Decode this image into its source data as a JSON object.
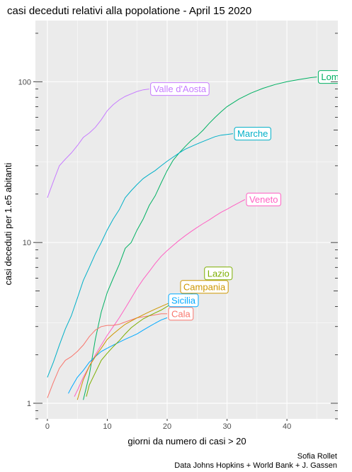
{
  "chart_data": {
    "type": "line",
    "title": "casi deceduti relativi alla popolatione - April 15 2020",
    "xlabel": "giorni da numero di casi >  20",
    "ylabel": "casi deceduti  per 1.e5 abitanti",
    "caption": [
      "Sofia Rollet",
      "Data Johns Hopkins + World Bank + J. Gassen"
    ],
    "xlim": [
      -2,
      48.5
    ],
    "ylim": [
      0.8,
      240
    ],
    "yscale": "log10",
    "grid": true,
    "x_ticks": [
      0,
      10,
      20,
      30,
      40
    ],
    "y_ticks": [
      1,
      10,
      100
    ],
    "series": [
      {
        "name": "Lombardia",
        "label": "Lombardia",
        "color": "#00b163",
        "x": [
          6,
          7,
          8,
          9,
          10,
          11,
          12,
          13,
          14,
          15,
          16,
          17,
          18,
          19,
          20,
          21,
          22,
          23,
          24,
          25,
          26,
          27,
          28,
          29,
          30,
          32,
          34,
          36,
          38,
          40,
          42,
          44,
          45
        ],
        "y": [
          1.05,
          1.5,
          2.5,
          3.7,
          4.9,
          6.0,
          7.3,
          9.2,
          10.0,
          12.0,
          14.0,
          17.0,
          19.5,
          23.5,
          28.0,
          32.5,
          36.0,
          39.5,
          43.0,
          46.0,
          50.0,
          55.0,
          60.0,
          65.0,
          70.0,
          78.0,
          85.0,
          91.0,
          96.0,
          100.0,
          103.0,
          106.0,
          107.0
        ]
      },
      {
        "name": "Marche",
        "label": "Marche",
        "color": "#00b0c8",
        "x": [
          0,
          1,
          2,
          3,
          4,
          5,
          6,
          7,
          8,
          9,
          10,
          11,
          12,
          13,
          14,
          15,
          16,
          17,
          18,
          19,
          20,
          21,
          22,
          23,
          24,
          25,
          26,
          27,
          28,
          29,
          30,
          31
        ],
        "y": [
          1.45,
          1.8,
          2.3,
          2.9,
          3.5,
          4.5,
          5.8,
          7.0,
          8.5,
          10.0,
          12.0,
          14.0,
          16.0,
          19.0,
          21.0,
          23.0,
          25.0,
          26.5,
          28.0,
          30.0,
          32.0,
          34.0,
          36.0,
          38.0,
          39.5,
          41.0,
          42.5,
          44.0,
          45.5,
          46.5,
          47.0,
          47.5
        ]
      },
      {
        "name": "Valle d'Aosta",
        "label": "Valle d'Aosta",
        "color": "#c77cff",
        "x": [
          0,
          1,
          2,
          3,
          4,
          5,
          6,
          7,
          8,
          9,
          10,
          11,
          12,
          13,
          14,
          15,
          16,
          17
        ],
        "y": [
          19.0,
          24.0,
          30.0,
          33.0,
          36.0,
          40.0,
          45.0,
          48.0,
          52.0,
          58.0,
          66.0,
          72.0,
          77.0,
          81.0,
          84.0,
          87.0,
          89.0,
          90.0
        ]
      },
      {
        "name": "Veneto",
        "label": "Veneto",
        "color": "#ff61c3",
        "x": [
          4.5,
          5,
          6,
          7,
          8,
          9,
          10,
          11,
          12,
          13,
          14,
          15,
          16,
          17,
          18,
          19,
          20,
          21,
          22,
          23,
          24,
          25,
          26,
          27,
          28,
          29,
          30,
          31,
          32,
          33
        ],
        "y": [
          1.1,
          1.2,
          1.45,
          1.7,
          2.0,
          2.3,
          2.65,
          3.0,
          3.4,
          3.9,
          4.5,
          5.2,
          5.9,
          6.6,
          7.4,
          8.2,
          8.9,
          9.6,
          10.3,
          11.0,
          11.7,
          12.4,
          13.1,
          13.8,
          14.6,
          15.4,
          16.1,
          16.9,
          17.7,
          18.5
        ]
      },
      {
        "name": "Calabria",
        "label": "Cala",
        "color": "#f8766d",
        "x": [
          0,
          1,
          2,
          3,
          4,
          5,
          6,
          7,
          8,
          9,
          10,
          11,
          12,
          13,
          14,
          15,
          16,
          17,
          18,
          19,
          20
        ],
        "y": [
          1.08,
          1.35,
          1.65,
          1.85,
          1.95,
          2.1,
          2.3,
          2.6,
          2.85,
          3.0,
          3.05,
          3.05,
          3.1,
          3.2,
          3.3,
          3.4,
          3.45,
          3.5,
          3.55,
          3.6,
          3.6
        ]
      },
      {
        "name": "Sicilia",
        "label": "Sicilia",
        "color": "#00a9ff",
        "x": [
          3.5,
          4,
          5,
          6,
          7,
          8,
          9,
          10,
          11,
          12,
          13,
          14,
          15,
          16,
          17,
          18,
          19,
          20
        ],
        "y": [
          1.15,
          1.25,
          1.45,
          1.6,
          1.8,
          1.95,
          2.1,
          2.2,
          2.3,
          2.4,
          2.5,
          2.6,
          2.7,
          2.85,
          3.0,
          3.15,
          3.3,
          3.4
        ]
      },
      {
        "name": "Campania",
        "label": "Campania",
        "color": "#cd9600",
        "x": [
          5,
          6,
          7,
          8,
          9,
          10,
          11,
          12,
          13,
          14,
          15,
          16,
          17,
          18,
          19,
          20,
          21,
          22
        ],
        "y": [
          1.05,
          1.4,
          1.7,
          1.95,
          2.2,
          2.5,
          2.7,
          2.9,
          3.1,
          3.25,
          3.4,
          3.55,
          3.7,
          3.85,
          4.0,
          4.15,
          4.3,
          4.4
        ]
      },
      {
        "name": "Lazio",
        "label": "Lazio",
        "color": "#7cae00",
        "x": [
          6.5,
          7,
          8,
          9,
          10,
          11,
          12,
          13,
          14,
          15,
          16,
          17,
          18,
          19,
          20,
          21,
          22,
          23,
          24,
          25,
          26
        ],
        "y": [
          1.1,
          1.3,
          1.55,
          1.85,
          2.05,
          2.25,
          2.45,
          2.7,
          2.95,
          3.15,
          3.35,
          3.5,
          3.65,
          3.8,
          4.0,
          4.2,
          4.4,
          4.6,
          4.8,
          4.95,
          5.1
        ]
      }
    ]
  }
}
